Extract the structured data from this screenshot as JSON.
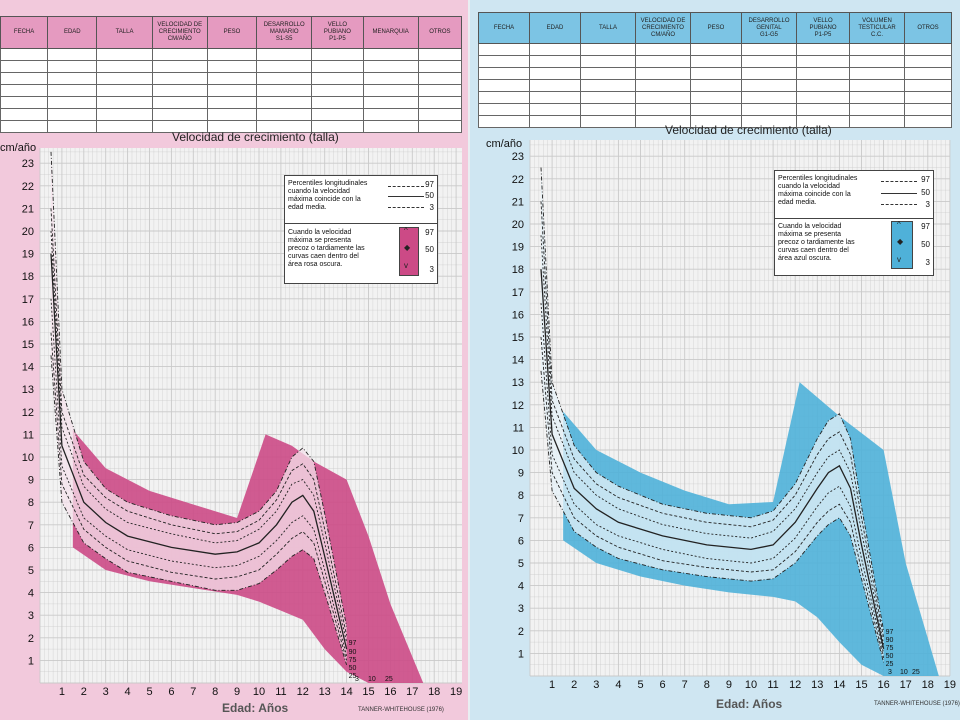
{
  "colors": {
    "left_bg": "#f2c9dc",
    "right_bg": "#cfe6f2",
    "left_band": "#cc4a86",
    "left_band_light": "#ec9ec3",
    "right_band": "#4fb1d9",
    "right_band_light": "#9ed3ea",
    "grid": "#c9c9c9",
    "plot_bg": "#f2f2f2"
  },
  "left_table": {
    "headers": [
      "FECHA",
      "EDAD",
      "TALLA",
      "VELOCIDAD DE\nCRECIMIENTO\ncm/año",
      "PESO",
      "DESARROLLO\nMAMARIO\nS1-S5",
      "VELLO\nPUBIANO\nP1-P5",
      "MENARQUIA",
      "OTROS"
    ]
  },
  "right_table": {
    "headers": [
      "FECHA",
      "EDAD",
      "TALLA",
      "VELOCIDAD DE\nCRECIMIENTO\ncm/año",
      "PESO",
      "DESARROLLO\nGENITAL\nG1-G5",
      "VELLO\nPUBIANO\nP1-P5",
      "VOLUMEN\nTESTICULAR\nc.c.",
      "OTROS"
    ]
  },
  "left_chart": {
    "title": "Velocidad de crecimiento (talla)",
    "unit": "cm/año",
    "xlabel": "Edad: Años",
    "credit": "TANNER-WHITEHOUSE (1976)",
    "legend": {
      "text1": "Percentiles longitudinales\ncuando la velocidad\nmáxima coincide con la\nedad media.",
      "p97": "97",
      "p50": "50",
      "p3": "3",
      "text2": "Cuando la velocidad\nmáxima se presenta\nprecoz o tardiamente las\ncurvas caen dentro del\nárea rosa oscura."
    },
    "end_labels": [
      "97",
      "90",
      "75",
      "50",
      "25"
    ],
    "bottom_labels": [
      "3",
      "10",
      "25"
    ]
  },
  "right_chart": {
    "title": "Velocidad de crecimiento (talla)",
    "unit": "cm/año",
    "xlabel": "Edad: Años",
    "credit": "TANNER-WHITEHOUSE (1976)",
    "legend": {
      "text1": "Percentiles longitudinales\ncuando la velocidad\nmáxima coincide con la\nedad media.",
      "p97": "97",
      "p50": "50",
      "p3": "3",
      "text2": "Cuando la velocidad\nmáxima se presenta\nprecoz o tardiamente las\ncurvas caen dentro del\nárea azul oscura."
    },
    "end_labels": [
      "97",
      "90",
      "75",
      "50",
      "25"
    ],
    "bottom_labels": [
      "3",
      "10",
      "25"
    ]
  },
  "chart_data": [
    {
      "type": "line",
      "title": "Velocidad de crecimiento (talla)",
      "xlabel": "Edad: Años",
      "ylabel": "cm/año",
      "xlim": [
        0,
        19
      ],
      "ylim": [
        0,
        23.5
      ],
      "x_ticks": [
        1,
        2,
        3,
        4,
        5,
        6,
        7,
        8,
        9,
        10,
        11,
        12,
        13,
        14,
        15,
        16,
        17,
        18,
        19
      ],
      "y_ticks": [
        1,
        2,
        3,
        4,
        5,
        6,
        7,
        8,
        9,
        10,
        11,
        12,
        13,
        14,
        15,
        16,
        17,
        18,
        19,
        20,
        21,
        22,
        23
      ],
      "grid": true,
      "series": [
        {
          "name": "97",
          "x": [
            0.5,
            1,
            2,
            3,
            4,
            6,
            8,
            9,
            10,
            10.8,
            11.5,
            12,
            12.5,
            13,
            14
          ],
          "y": [
            23.5,
            13,
            9.8,
            8.6,
            8.0,
            7.4,
            7.0,
            7.1,
            7.6,
            8.5,
            10,
            10.4,
            9.8,
            7.5,
            2.5
          ]
        },
        {
          "name": "90",
          "x": [
            0.5,
            1,
            2,
            3,
            4,
            6,
            8,
            9,
            10,
            10.8,
            11.5,
            12,
            12.5,
            13,
            14
          ],
          "y": [
            21,
            12,
            9.2,
            8.2,
            7.6,
            7.0,
            6.6,
            6.7,
            7.2,
            8.1,
            9.4,
            9.7,
            9.0,
            6.8,
            2.1
          ]
        },
        {
          "name": "75",
          "x": [
            0.5,
            1,
            2,
            3,
            4,
            6,
            8,
            9,
            10,
            10.8,
            11.5,
            12,
            12.5,
            13,
            14
          ],
          "y": [
            20,
            11.3,
            8.7,
            7.7,
            7.1,
            6.6,
            6.2,
            6.3,
            6.8,
            7.6,
            8.8,
            9.0,
            8.3,
            6.2,
            1.8
          ]
        },
        {
          "name": "50",
          "x": [
            0.5,
            1,
            2,
            3,
            4,
            6,
            8,
            9,
            10,
            10.8,
            11.5,
            12,
            12.5,
            13,
            14
          ],
          "y": [
            19,
            10.5,
            8.0,
            7.1,
            6.5,
            6.0,
            5.7,
            5.8,
            6.2,
            7.0,
            8.0,
            8.3,
            7.6,
            5.6,
            1.5
          ]
        },
        {
          "name": "25",
          "x": [
            0.5,
            1,
            2,
            3,
            4,
            6,
            8,
            9,
            10,
            10.8,
            11.5,
            12,
            12.5,
            13,
            14
          ],
          "y": [
            17,
            9.6,
            7.3,
            6.5,
            5.9,
            5.4,
            5.1,
            5.2,
            5.6,
            6.3,
            7.1,
            7.4,
            6.8,
            5.0,
            1.2
          ]
        },
        {
          "name": "10",
          "x": [
            0.5,
            1,
            2,
            3,
            4,
            6,
            8,
            9,
            10,
            10.8,
            11.5,
            12,
            12.5,
            13,
            14
          ],
          "y": [
            15.5,
            8.8,
            6.8,
            6.0,
            5.4,
            4.9,
            4.6,
            4.7,
            5.0,
            5.7,
            6.4,
            6.7,
            6.2,
            4.5,
            1.0
          ]
        },
        {
          "name": "3",
          "x": [
            0.5,
            1,
            2,
            3,
            4,
            6,
            8,
            9,
            10,
            10.8,
            11.5,
            12,
            12.5,
            13,
            14
          ],
          "y": [
            14.5,
            8.0,
            6.2,
            5.5,
            4.9,
            4.5,
            4.1,
            4.1,
            4.4,
            5.0,
            5.6,
            5.9,
            5.5,
            4.0,
            0.8
          ]
        }
      ],
      "band_upper": {
        "x": [
          1.5,
          3,
          5,
          7,
          9,
          10.3,
          11.5,
          12.5,
          14,
          15,
          16,
          17.5
        ],
        "y": [
          11.2,
          9.5,
          8.5,
          7.9,
          7.3,
          11,
          10.5,
          9.8,
          9.0,
          6.5,
          3.5,
          0
        ]
      },
      "band_lower": {
        "x": [
          1.5,
          3,
          5,
          7,
          9,
          10,
          11,
          12,
          13,
          14,
          15,
          16
        ],
        "y": [
          6.0,
          5.0,
          4.5,
          4.2,
          3.9,
          3.6,
          3.2,
          2.8,
          1.5,
          0.5,
          0,
          0
        ]
      }
    },
    {
      "type": "line",
      "title": "Velocidad de crecimiento (talla)",
      "xlabel": "Edad: Años",
      "ylabel": "cm/año",
      "xlim": [
        0,
        19
      ],
      "ylim": [
        0,
        23.5
      ],
      "x_ticks": [
        1,
        2,
        3,
        4,
        5,
        6,
        7,
        8,
        9,
        10,
        11,
        12,
        13,
        14,
        15,
        16,
        17,
        18,
        19
      ],
      "y_ticks": [
        1,
        2,
        3,
        4,
        5,
        6,
        7,
        8,
        9,
        10,
        11,
        12,
        13,
        14,
        15,
        16,
        17,
        18,
        19,
        20,
        21,
        22,
        23
      ],
      "grid": true,
      "series": [
        {
          "name": "97",
          "x": [
            0.5,
            1,
            2,
            3,
            4,
            6,
            8,
            10,
            11,
            12,
            13,
            13.5,
            14,
            14.5,
            15,
            16
          ],
          "y": [
            22.5,
            13,
            10.2,
            9.0,
            8.4,
            7.6,
            7.2,
            7.0,
            7.3,
            8.5,
            10.5,
            11.3,
            11.6,
            10.5,
            7.5,
            2.0
          ]
        },
        {
          "name": "90",
          "x": [
            0.5,
            1,
            2,
            3,
            4,
            6,
            8,
            10,
            11,
            12,
            13,
            13.5,
            14,
            14.5,
            15,
            16
          ],
          "y": [
            21,
            12.2,
            9.6,
            8.5,
            7.9,
            7.2,
            6.8,
            6.6,
            6.9,
            8.0,
            9.8,
            10.5,
            10.8,
            9.8,
            7.0,
            1.7
          ]
        },
        {
          "name": "75",
          "x": [
            0.5,
            1,
            2,
            3,
            4,
            6,
            8,
            10,
            11,
            12,
            13,
            13.5,
            14,
            14.5,
            15,
            16
          ],
          "y": [
            19.5,
            11.5,
            9.0,
            8.0,
            7.4,
            6.7,
            6.3,
            6.1,
            6.4,
            7.4,
            9.0,
            9.7,
            10.0,
            9.0,
            6.4,
            1.4
          ]
        },
        {
          "name": "50",
          "x": [
            0.5,
            1,
            2,
            3,
            4,
            6,
            8,
            10,
            11,
            12,
            13,
            13.5,
            14,
            14.5,
            15,
            16
          ],
          "y": [
            18,
            10.7,
            8.3,
            7.4,
            6.8,
            6.2,
            5.8,
            5.6,
            5.8,
            6.8,
            8.3,
            9.0,
            9.3,
            8.3,
            5.8,
            1.2
          ]
        },
        {
          "name": "25",
          "x": [
            0.5,
            1,
            2,
            3,
            4,
            6,
            8,
            10,
            11,
            12,
            13,
            13.5,
            14,
            14.5,
            15,
            16
          ],
          "y": [
            16.5,
            9.8,
            7.6,
            6.7,
            6.2,
            5.6,
            5.2,
            5.0,
            5.2,
            6.1,
            7.5,
            8.1,
            8.4,
            7.5,
            5.2,
            1.0
          ]
        },
        {
          "name": "10",
          "x": [
            0.5,
            1,
            2,
            3,
            4,
            6,
            8,
            10,
            11,
            12,
            13,
            13.5,
            14,
            14.5,
            15,
            16
          ],
          "y": [
            15,
            9.0,
            7.0,
            6.2,
            5.7,
            5.1,
            4.8,
            4.6,
            4.7,
            5.5,
            6.8,
            7.3,
            7.6,
            6.8,
            4.7,
            0.8
          ]
        },
        {
          "name": "3",
          "x": [
            0.5,
            1,
            2,
            3,
            4,
            6,
            8,
            10,
            11,
            12,
            13,
            13.5,
            14,
            14.5,
            15,
            16
          ],
          "y": [
            13.5,
            8.2,
            6.4,
            5.7,
            5.2,
            4.7,
            4.4,
            4.2,
            4.3,
            5.0,
            6.2,
            6.7,
            7.0,
            6.2,
            4.3,
            0.6
          ]
        }
      ],
      "band_upper": {
        "x": [
          1.5,
          3,
          5,
          7,
          9,
          11,
          12.2,
          14,
          16,
          17,
          18.5
        ],
        "y": [
          11.7,
          10.0,
          9.0,
          8.2,
          7.6,
          7.7,
          13,
          11.5,
          10,
          5,
          0
        ]
      },
      "band_lower": {
        "x": [
          1.5,
          3,
          5,
          7,
          9,
          11,
          12,
          13,
          14,
          15,
          16
        ],
        "y": [
          6.0,
          5.0,
          4.4,
          4.0,
          3.7,
          3.5,
          3.3,
          2.6,
          1.5,
          0.5,
          0
        ]
      }
    }
  ]
}
